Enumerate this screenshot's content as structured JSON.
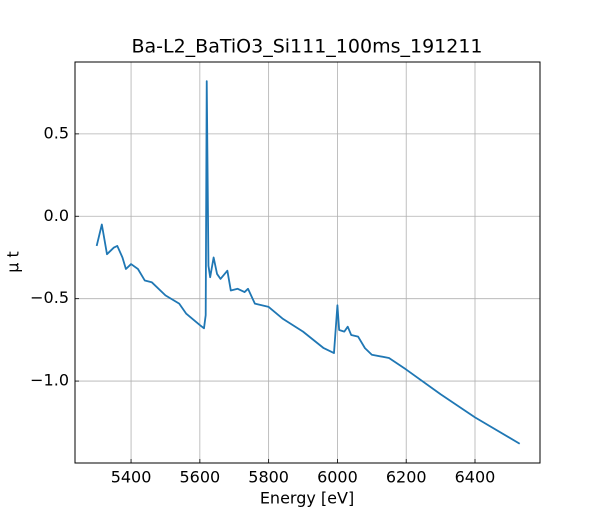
{
  "chart_data": {
    "type": "line",
    "title": "Ba-L2_BaTiO3_Si111_100ms_191211",
    "xlabel": "Energy [eV]",
    "ylabel": "μ t",
    "x": [
      5300,
      5315,
      5330,
      5350,
      5360,
      5375,
      5385,
      5400,
      5420,
      5440,
      5460,
      5500,
      5540,
      5560,
      5600,
      5612,
      5617,
      5620,
      5625,
      5630,
      5640,
      5650,
      5660,
      5680,
      5690,
      5710,
      5730,
      5740,
      5760,
      5800,
      5840,
      5900,
      5960,
      5990,
      6000,
      6005,
      6020,
      6030,
      6040,
      6060,
      6080,
      6100,
      6150,
      6200,
      6300,
      6400,
      6530
    ],
    "values": [
      -0.18,
      -0.05,
      -0.23,
      -0.19,
      -0.18,
      -0.25,
      -0.32,
      -0.29,
      -0.32,
      -0.39,
      -0.4,
      -0.48,
      -0.53,
      -0.59,
      -0.66,
      -0.68,
      -0.6,
      0.82,
      -0.3,
      -0.37,
      -0.25,
      -0.35,
      -0.38,
      -0.33,
      -0.45,
      -0.44,
      -0.46,
      -0.44,
      -0.53,
      -0.55,
      -0.62,
      -0.7,
      -0.8,
      -0.83,
      -0.54,
      -0.69,
      -0.7,
      -0.67,
      -0.72,
      -0.73,
      -0.8,
      -0.84,
      -0.86,
      -0.93,
      -1.08,
      -1.22,
      -1.38
    ],
    "color": "#1f77b4",
    "xlim": [
      5237,
      6589
    ],
    "ylim": [
      -1.497,
      0.936
    ],
    "xticks": [
      5400,
      5600,
      5800,
      6000,
      6200,
      6400
    ],
    "yticks": [
      {
        "value": -1.0,
        "label": "−1.0"
      },
      {
        "value": -0.5,
        "label": "−0.5"
      },
      {
        "value": 0.0,
        "label": "0.0"
      },
      0.5
    ],
    "grid": true
  }
}
